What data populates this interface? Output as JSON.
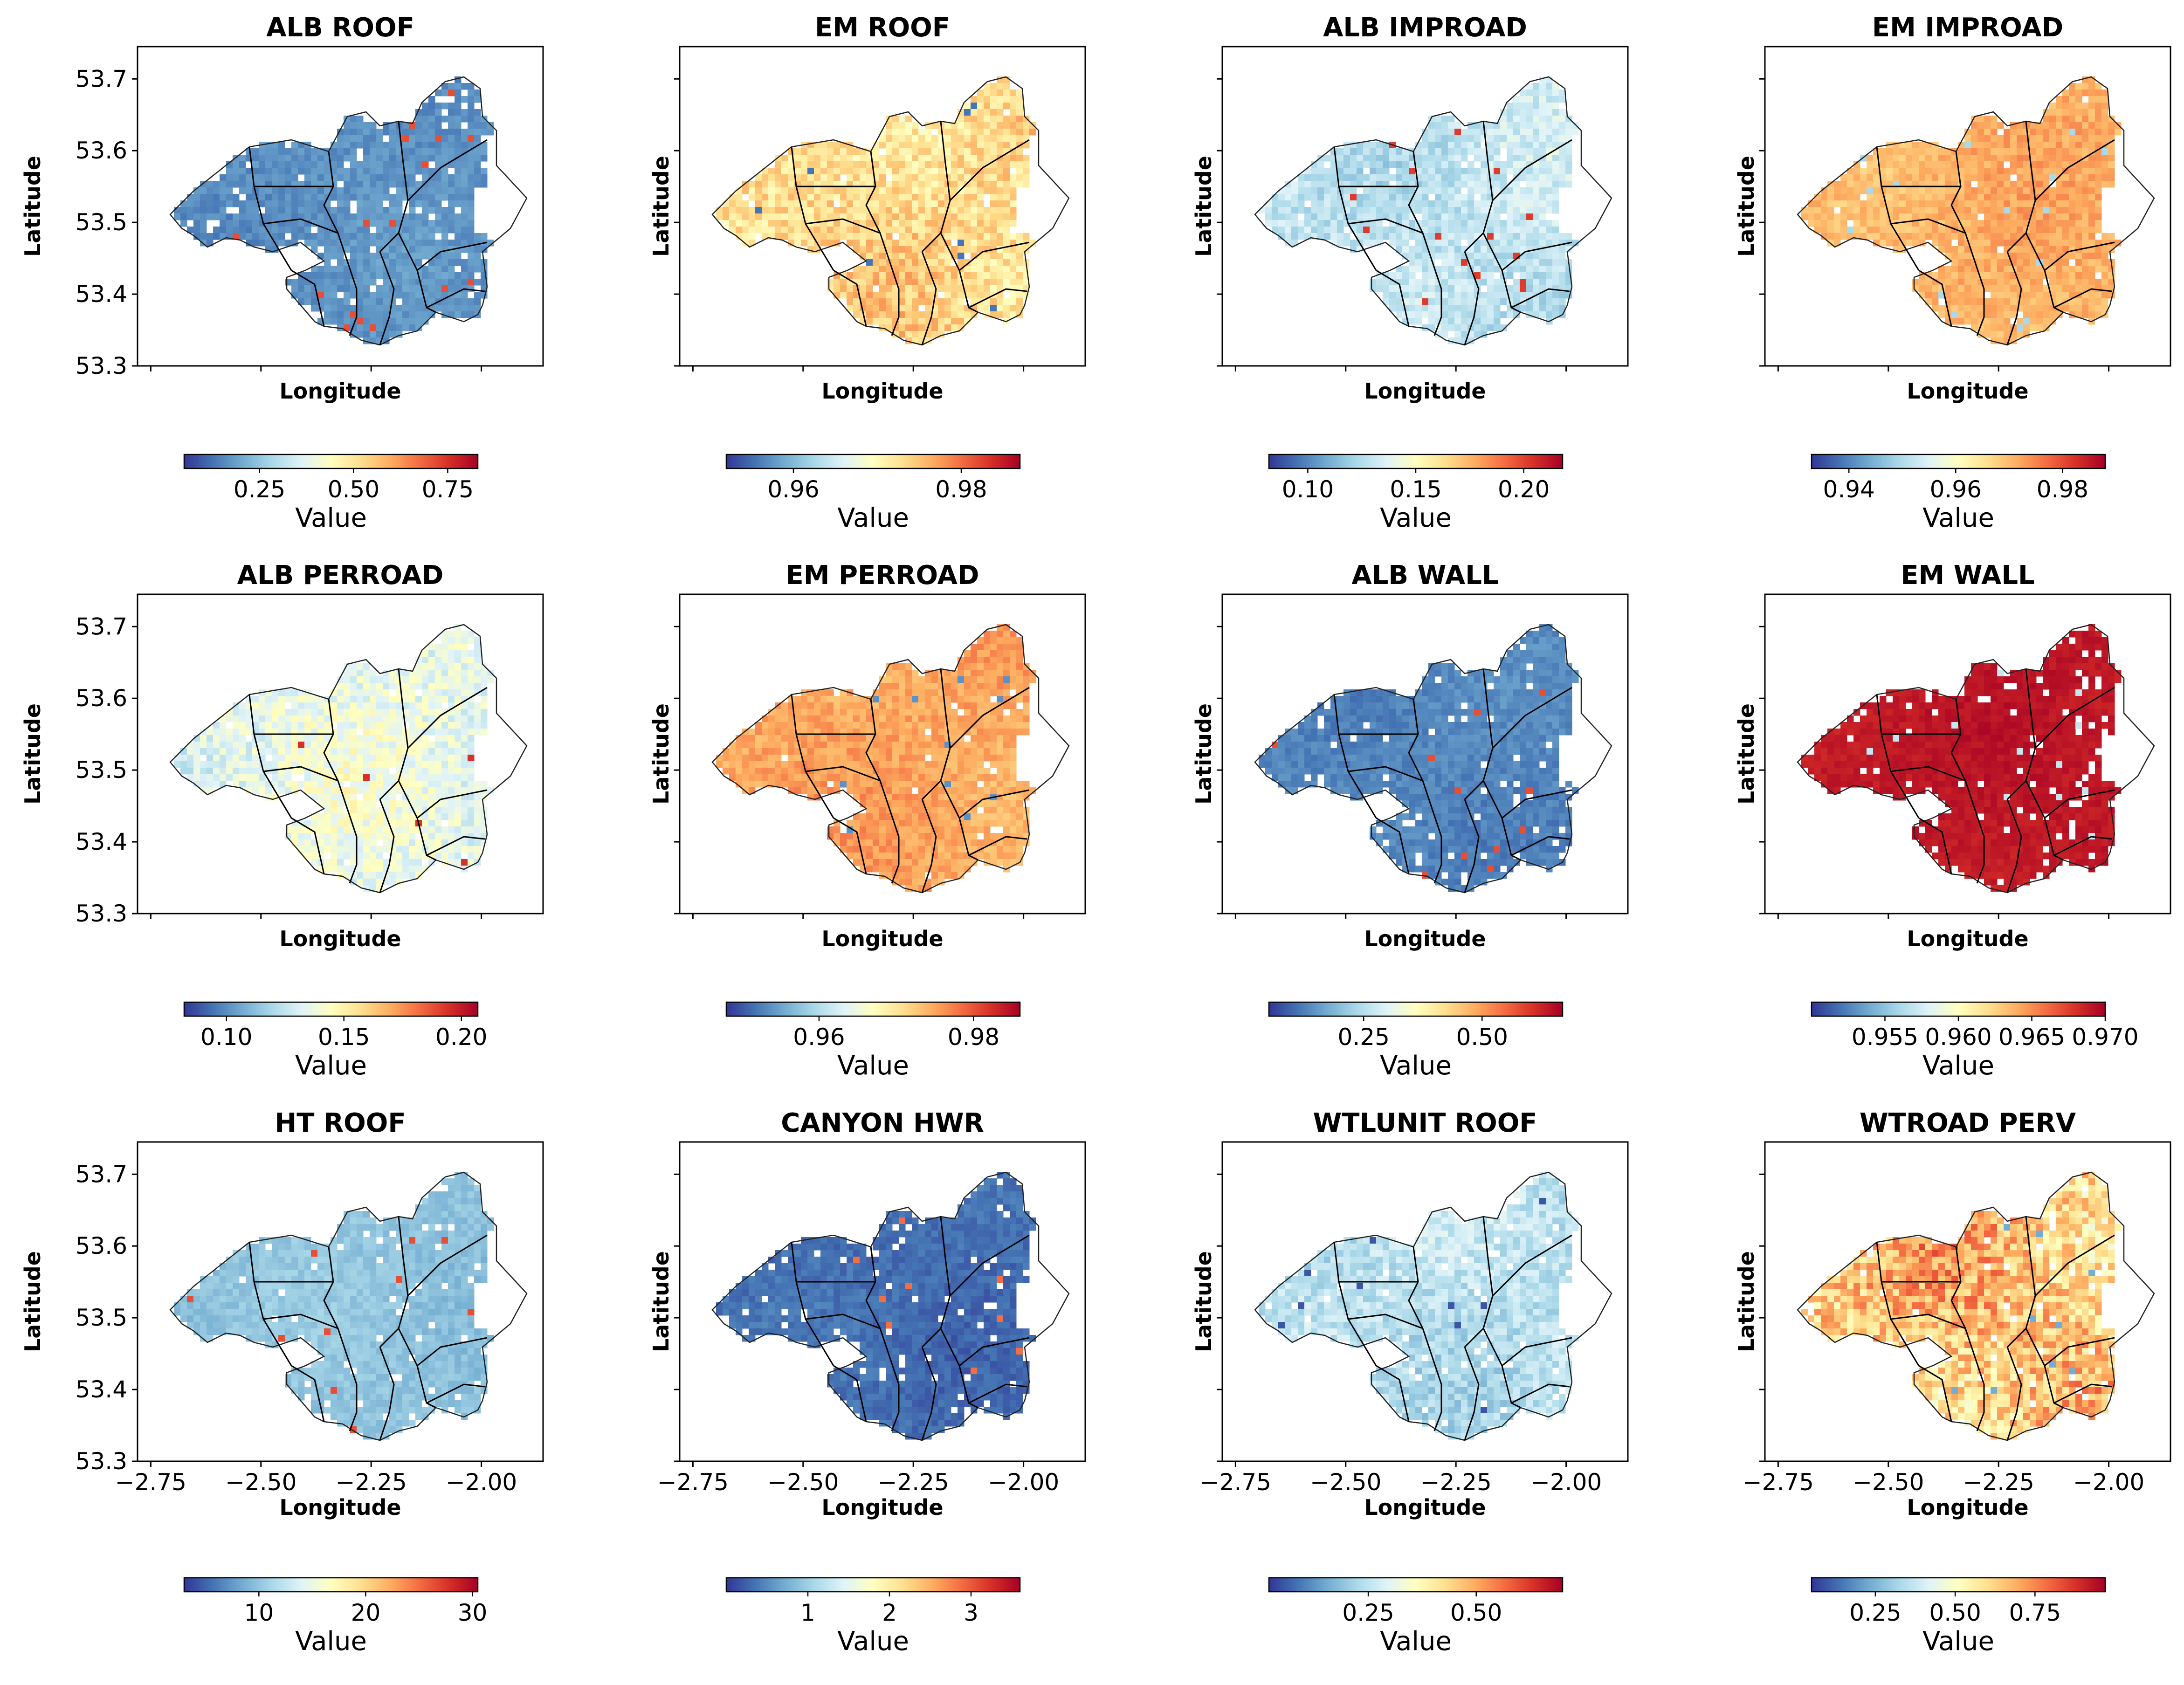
{
  "figure": {
    "x_axis_label": "Longitude",
    "y_axis_label": "Latitude",
    "colorbar_label": "Value",
    "colormap": "RdYlBu_r",
    "colormap_stops": [
      "#313695",
      "#4575b4",
      "#74add1",
      "#abd9e9",
      "#e0f3f8",
      "#ffffbf",
      "#fee090",
      "#fdae61",
      "#f46d43",
      "#d73027",
      "#a50026"
    ],
    "x_ticks": [
      "−2.75",
      "−2.50",
      "−2.25",
      "−2.00"
    ],
    "y_ticks": [
      "53.7",
      "53.6",
      "53.5",
      "53.4",
      "53.3"
    ]
  },
  "chart_data": [
    {
      "type": "heatmap",
      "title": "ALB ROOF",
      "colorbar_ticks": [
        "0.25",
        "0.50",
        "0.75"
      ],
      "colorbar_range": [
        0.05,
        0.83
      ],
      "field_range": [
        0.08,
        0.22
      ],
      "outliers": 0.85,
      "holes": 0.06
    },
    {
      "type": "heatmap",
      "title": "EM ROOF",
      "colorbar_ticks": [
        "0.96",
        "0.98"
      ],
      "colorbar_range": [
        0.952,
        0.987
      ],
      "field_range": [
        0.4,
        0.8
      ],
      "outliers": 0.1,
      "holes": 0.03
    },
    {
      "type": "heatmap",
      "title": "ALB IMPROAD",
      "colorbar_ticks": [
        "0.10",
        "0.15",
        "0.20"
      ],
      "colorbar_range": [
        0.082,
        0.218
      ],
      "field_range": [
        0.2,
        0.48
      ],
      "outliers": 0.88,
      "holes": 0.03
    },
    {
      "type": "heatmap",
      "title": "EM IMPROAD",
      "colorbar_ticks": [
        "0.94",
        "0.96",
        "0.98"
      ],
      "colorbar_range": [
        0.933,
        0.988
      ],
      "field_range": [
        0.58,
        0.8
      ],
      "outliers": 0.3,
      "holes": 0.02
    },
    {
      "type": "heatmap",
      "title": "ALB PERROAD",
      "colorbar_ticks": [
        "0.10",
        "0.15",
        "0.20"
      ],
      "colorbar_range": [
        0.082,
        0.207
      ],
      "field_range": [
        0.25,
        0.6
      ],
      "outliers": 0.9,
      "holes": 0.03
    },
    {
      "type": "heatmap",
      "title": "EM PERROAD",
      "colorbar_ticks": [
        "0.96",
        "0.98"
      ],
      "colorbar_range": [
        0.948,
        0.986
      ],
      "field_range": [
        0.6,
        0.82
      ],
      "outliers": 0.15,
      "holes": 0.02
    },
    {
      "type": "heatmap",
      "title": "ALB WALL",
      "colorbar_ticks": [
        "0.25",
        "0.50"
      ],
      "colorbar_range": [
        0.05,
        0.67
      ],
      "field_range": [
        0.06,
        0.2
      ],
      "outliers": 0.85,
      "holes": 0.05
    },
    {
      "type": "heatmap",
      "title": "EM WALL",
      "colorbar_ticks": [
        "0.955",
        "0.960",
        "0.965",
        "0.970"
      ],
      "colorbar_range": [
        0.95,
        0.97
      ],
      "field_range": [
        0.9,
        1.0
      ],
      "outliers": 0.35,
      "holes": 0.06
    },
    {
      "type": "heatmap",
      "title": "HT ROOF",
      "colorbar_ticks": [
        "10",
        "20",
        "30"
      ],
      "colorbar_range": [
        3,
        30.5
      ],
      "field_range": [
        0.18,
        0.32
      ],
      "outliers": 0.85,
      "holes": 0.05
    },
    {
      "type": "heatmap",
      "title": "CANYON HWR",
      "colorbar_ticks": [
        "1",
        "2",
        "3"
      ],
      "colorbar_range": [
        0,
        3.6
      ],
      "field_range": [
        0.02,
        0.16
      ],
      "outliers": 0.8,
      "holes": 0.05
    },
    {
      "type": "heatmap",
      "title": "WTLUNIT ROOF",
      "colorbar_ticks": [
        "0.25",
        "0.50"
      ],
      "colorbar_range": [
        0.02,
        0.7
      ],
      "field_range": [
        0.18,
        0.48
      ],
      "outliers": 0.05,
      "holes": 0.04
    },
    {
      "type": "heatmap",
      "title": "WTROAD PERV",
      "colorbar_ticks": [
        "0.25",
        "0.50",
        "0.75"
      ],
      "colorbar_range": [
        0.05,
        0.97
      ],
      "field_range": [
        0.35,
        0.95
      ],
      "outliers": 0.2,
      "holes": 0.04
    }
  ]
}
